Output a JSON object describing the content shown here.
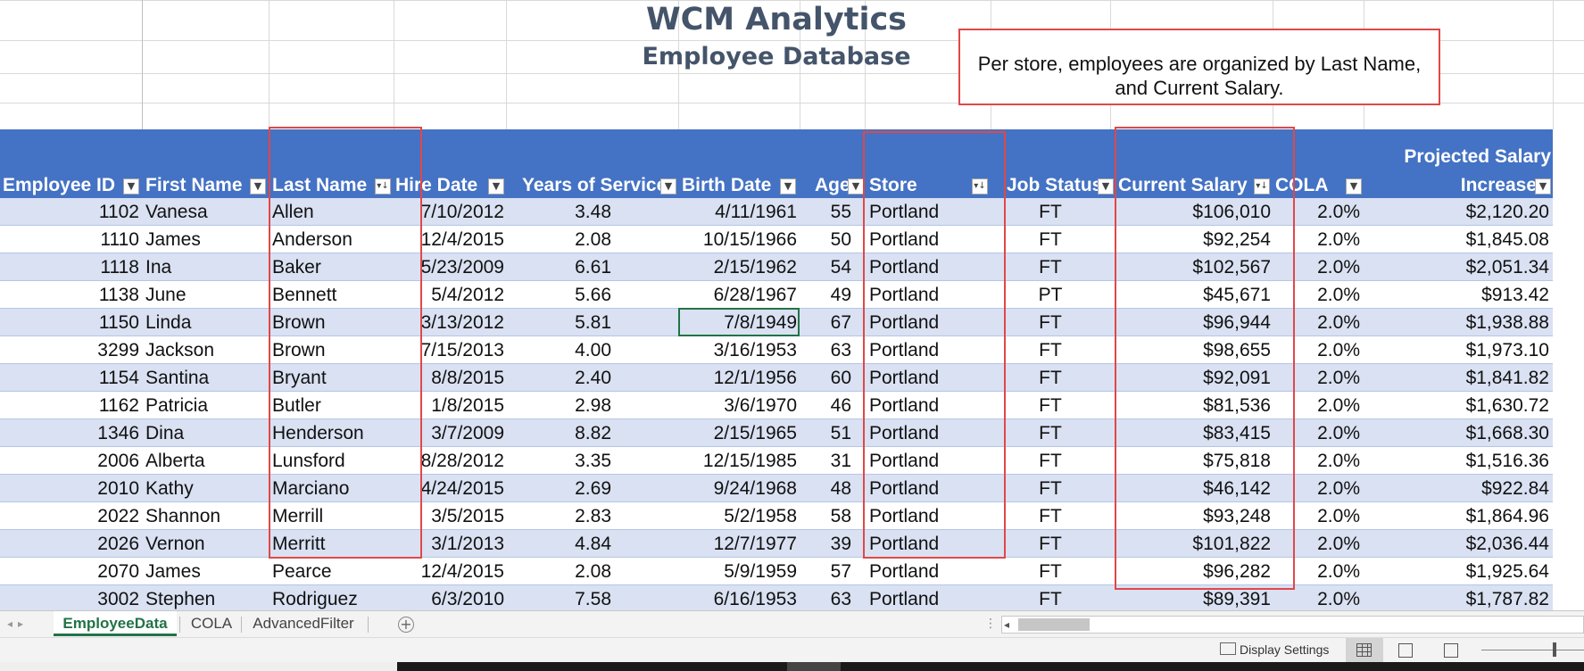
{
  "title": "WCM Analytics",
  "subtitle": "Employee Database",
  "callout": "Per store, employees are organized by Last Name, and Current Salary.",
  "columns": {
    "employee_id": "Employee ID",
    "first_name": "First Name",
    "last_name": "Last Name",
    "hire_date": "Hire Date",
    "years_of_service": "Years of Service",
    "birth_date": "Birth Date",
    "age": "Age",
    "store": "Store",
    "job_status": "Job Status",
    "current_salary": "Current Salary",
    "cola": "COLA",
    "projected_line1": "Projected Salary",
    "projected_line2": "Increase"
  },
  "rows": [
    {
      "id": "1102",
      "first": "Vanesa",
      "last": "Allen",
      "hire": "7/10/2012",
      "years": "3.48",
      "birth": "4/11/1961",
      "age": "55",
      "store": "Portland",
      "status": "FT",
      "salary": "$106,010",
      "cola": "2.0%",
      "proj": "$2,120.20"
    },
    {
      "id": "1110",
      "first": "James",
      "last": "Anderson",
      "hire": "12/4/2015",
      "years": "2.08",
      "birth": "10/15/1966",
      "age": "50",
      "store": "Portland",
      "status": "FT",
      "salary": "$92,254",
      "cola": "2.0%",
      "proj": "$1,845.08"
    },
    {
      "id": "1118",
      "first": "Ina",
      "last": "Baker",
      "hire": "5/23/2009",
      "years": "6.61",
      "birth": "2/15/1962",
      "age": "54",
      "store": "Portland",
      "status": "FT",
      "salary": "$102,567",
      "cola": "2.0%",
      "proj": "$2,051.34"
    },
    {
      "id": "1138",
      "first": "June",
      "last": "Bennett",
      "hire": "5/4/2012",
      "years": "5.66",
      "birth": "6/28/1967",
      "age": "49",
      "store": "Portland",
      "status": "PT",
      "salary": "$45,671",
      "cola": "2.0%",
      "proj": "$913.42"
    },
    {
      "id": "1150",
      "first": "Linda",
      "last": "Brown",
      "hire": "3/13/2012",
      "years": "5.81",
      "birth": "7/8/1949",
      "age": "67",
      "store": "Portland",
      "status": "FT",
      "salary": "$96,944",
      "cola": "2.0%",
      "proj": "$1,938.88"
    },
    {
      "id": "3299",
      "first": "Jackson",
      "last": "Brown",
      "hire": "7/15/2013",
      "years": "4.00",
      "birth": "3/16/1953",
      "age": "63",
      "store": "Portland",
      "status": "FT",
      "salary": "$98,655",
      "cola": "2.0%",
      "proj": "$1,973.10"
    },
    {
      "id": "1154",
      "first": "Santina",
      "last": "Bryant",
      "hire": "8/8/2015",
      "years": "2.40",
      "birth": "12/1/1956",
      "age": "60",
      "store": "Portland",
      "status": "FT",
      "salary": "$92,091",
      "cola": "2.0%",
      "proj": "$1,841.82"
    },
    {
      "id": "1162",
      "first": "Patricia",
      "last": "Butler",
      "hire": "1/8/2015",
      "years": "2.98",
      "birth": "3/6/1970",
      "age": "46",
      "store": "Portland",
      "status": "FT",
      "salary": "$81,536",
      "cola": "2.0%",
      "proj": "$1,630.72"
    },
    {
      "id": "1346",
      "first": "Dina",
      "last": "Henderson",
      "hire": "3/7/2009",
      "years": "8.82",
      "birth": "2/15/1965",
      "age": "51",
      "store": "Portland",
      "status": "FT",
      "salary": "$83,415",
      "cola": "2.0%",
      "proj": "$1,668.30"
    },
    {
      "id": "2006",
      "first": "Alberta",
      "last": "Lunsford",
      "hire": "8/28/2012",
      "years": "3.35",
      "birth": "12/15/1985",
      "age": "31",
      "store": "Portland",
      "status": "FT",
      "salary": "$75,818",
      "cola": "2.0%",
      "proj": "$1,516.36"
    },
    {
      "id": "2010",
      "first": "Kathy",
      "last": "Marciano",
      "hire": "4/24/2015",
      "years": "2.69",
      "birth": "9/24/1968",
      "age": "48",
      "store": "Portland",
      "status": "FT",
      "salary": "$46,142",
      "cola": "2.0%",
      "proj": "$922.84"
    },
    {
      "id": "2022",
      "first": "Shannon",
      "last": "Merrill",
      "hire": "3/5/2015",
      "years": "2.83",
      "birth": "5/2/1958",
      "age": "58",
      "store": "Portland",
      "status": "FT",
      "salary": "$93,248",
      "cola": "2.0%",
      "proj": "$1,864.96"
    },
    {
      "id": "2026",
      "first": "Vernon",
      "last": "Merritt",
      "hire": "3/1/2013",
      "years": "4.84",
      "birth": "12/7/1977",
      "age": "39",
      "store": "Portland",
      "status": "FT",
      "salary": "$101,822",
      "cola": "2.0%",
      "proj": "$2,036.44"
    },
    {
      "id": "2070",
      "first": "James",
      "last": "Pearce",
      "hire": "12/4/2015",
      "years": "2.08",
      "birth": "5/9/1959",
      "age": "57",
      "store": "Portland",
      "status": "FT",
      "salary": "$96,282",
      "cola": "2.0%",
      "proj": "$1,925.64"
    },
    {
      "id": "3002",
      "first": "Stephen",
      "last": "Rodriguez",
      "hire": "6/3/2010",
      "years": "7.58",
      "birth": "6/16/1953",
      "age": "63",
      "store": "Portland",
      "status": "FT",
      "salary": "$89,391",
      "cola": "2.0%",
      "proj": "$1,787.82"
    }
  ],
  "sheet_tabs": [
    {
      "label": "EmployeeData",
      "active": true
    },
    {
      "label": "COLA",
      "active": false
    },
    {
      "label": "AdvancedFilter",
      "active": false
    }
  ],
  "status": {
    "display_settings": "Display Settings"
  },
  "colors": {
    "header": "#4472c4",
    "band": "#d9e1f2",
    "annotation": "#e04848",
    "title": "#44546a",
    "excel_green": "#217346"
  },
  "icons": {
    "filter": "filter-dropdown-icon",
    "sorted": "sort-filter-icon",
    "add_sheet": "plus-circle-icon",
    "normal_view": "grid-view-icon",
    "page_layout": "page-layout-icon",
    "page_break": "page-break-icon"
  }
}
